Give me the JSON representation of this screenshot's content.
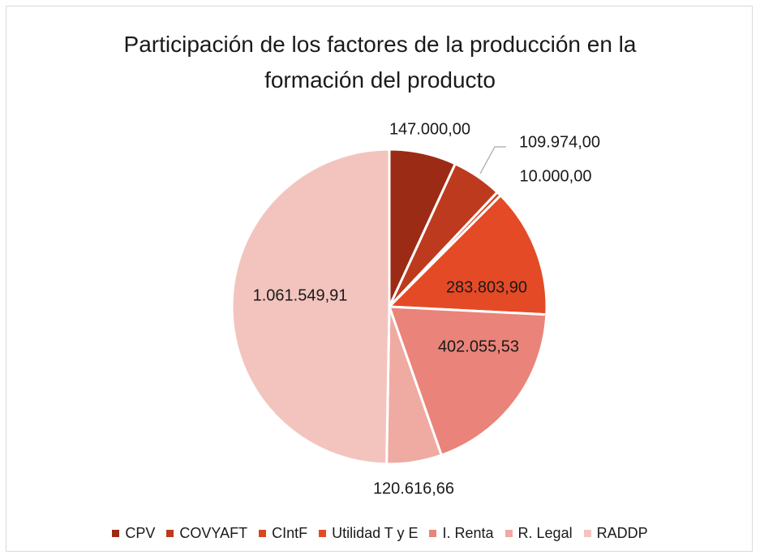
{
  "chart_data": {
    "type": "pie",
    "title": "Participación de los factores de la producción en la formación del producto",
    "categories": [
      "CPV",
      "COVYAFT",
      "CIntF",
      "Utilidad T y E",
      "I. Renta",
      "R. Legal",
      "RADDP"
    ],
    "values": [
      147000,
      109974,
      10000,
      283803.9,
      402055.53,
      120616.66,
      1061549.91
    ],
    "value_labels": [
      "147.000,00",
      "109.974,00",
      "10.000,00",
      "283.803,90",
      "402.055,53",
      "120.616,66",
      "1.061.549,91"
    ],
    "colors": [
      "#9c2b16",
      "#be3a1f",
      "#d8461f",
      "#e54a26",
      "#ea8379",
      "#efaaa2",
      "#f3c4be"
    ],
    "legend": "bottom"
  }
}
